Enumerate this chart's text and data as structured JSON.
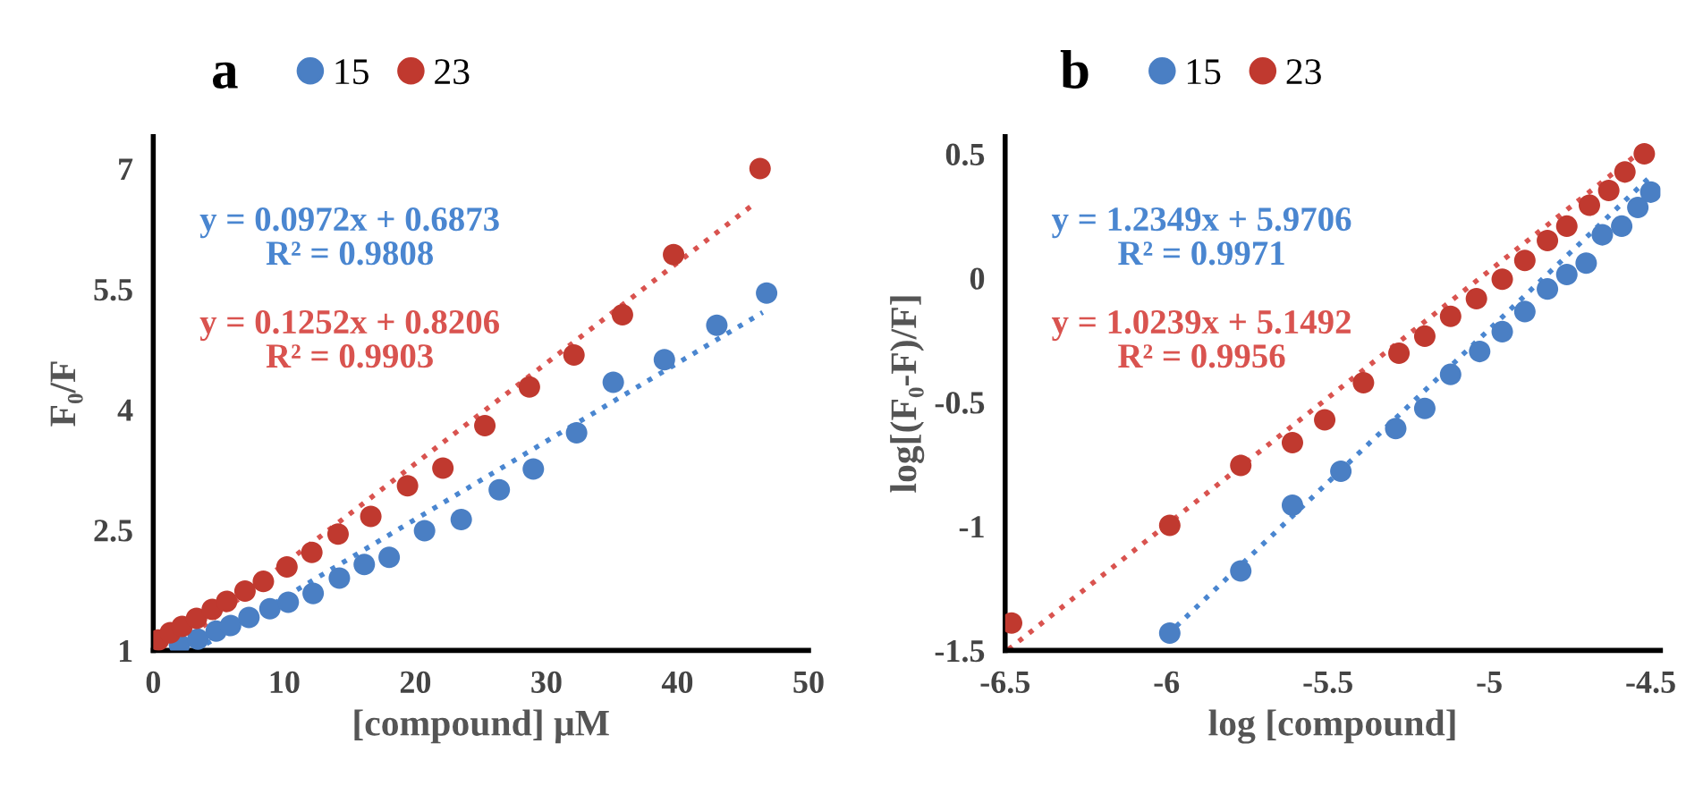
{
  "chart_data": [
    {
      "type": "scatter",
      "title": "a",
      "xlabel": "[compound] μM",
      "ylabel": "F₀/F",
      "xlim": [
        0,
        50
      ],
      "ylim": [
        1,
        7.4
      ],
      "xticks": [
        0,
        10,
        20,
        30,
        40,
        50
      ],
      "yticks": [
        1,
        2.5,
        4,
        5.5,
        7
      ],
      "grid": false,
      "legend": "top",
      "marker": "circle",
      "annotations": [
        "y = 0.0972x + 0.6873\nR² = 0.9808",
        "y = 0.1252x + 0.8206\nR² = 0.9903"
      ],
      "series": [
        {
          "name": "15",
          "color": "#4a7fc4",
          "x": [
            2.0,
            3.4,
            4.8,
            5.9,
            7.3,
            8.9,
            10.3,
            12.2,
            14.2,
            16.1,
            18.0,
            20.7,
            23.5,
            26.4,
            29.0,
            32.3,
            35.1,
            39.0,
            43.0,
            46.8
          ],
          "values": [
            1.07,
            1.14,
            1.24,
            1.31,
            1.41,
            1.52,
            1.6,
            1.71,
            1.9,
            2.07,
            2.16,
            2.49,
            2.63,
            3.0,
            3.26,
            3.71,
            4.34,
            4.62,
            5.05,
            5.45
          ]
        },
        {
          "name": "23",
          "color": "#c0392f",
          "x": [
            0.4,
            1.3,
            2.2,
            3.3,
            4.5,
            5.6,
            7.0,
            8.4,
            10.2,
            12.1,
            14.1,
            16.6,
            19.4,
            22.1,
            25.3,
            28.7,
            32.1,
            35.8,
            39.7,
            46.3
          ],
          "values": [
            1.13,
            1.22,
            1.3,
            1.4,
            1.51,
            1.61,
            1.74,
            1.86,
            2.04,
            2.22,
            2.45,
            2.67,
            3.05,
            3.27,
            3.8,
            4.28,
            4.68,
            5.18,
            5.93,
            7.0
          ]
        },
        {
          "type": "line",
          "color": "#4a86d0",
          "line_style": "dotted",
          "marker": "none",
          "x": [
            3.2,
            46.5
          ],
          "values": [
            1.0,
            5.21
          ]
        },
        {
          "type": "line",
          "color": "#d9534f",
          "line_style": "dotted",
          "marker": "none",
          "x": [
            1.4,
            46.0
          ],
          "values": [
            1.0,
            6.58
          ]
        }
      ]
    },
    {
      "type": "scatter",
      "title": "b",
      "xlabel": "log [compound]",
      "ylabel": "log[(F₀-F)/F]",
      "xlim": [
        -6.5,
        -4.47
      ],
      "ylim": [
        -1.5,
        0.57
      ],
      "xticks": [
        -6.5,
        -6,
        -5.5,
        -5,
        -4.5
      ],
      "yticks": [
        -1.5,
        -1,
        -0.5,
        0,
        0.5
      ],
      "grid": false,
      "legend": "top",
      "marker": "circle",
      "annotations": [
        "y = 1.2349x + 5.9706\nR² = 0.9971",
        "y = 1.0239x + 5.1492\nR² = 0.9956"
      ],
      "series": [
        {
          "name": "15",
          "color": "#4a7fc4",
          "x": [
            -5.99,
            -5.77,
            -5.61,
            -5.46,
            -5.29,
            -5.2,
            -5.12,
            -5.03,
            -4.96,
            -4.89,
            -4.82,
            -4.76,
            -4.7,
            -4.65,
            -4.59,
            -4.54,
            -4.5
          ],
          "values": [
            -1.43,
            -1.18,
            -0.915,
            -0.778,
            -0.606,
            -0.525,
            -0.388,
            -0.296,
            -0.216,
            -0.135,
            -0.044,
            0.014,
            0.06,
            0.174,
            0.209,
            0.284,
            0.346
          ]
        },
        {
          "name": "23",
          "color": "#c0392f",
          "x": [
            -6.48,
            -5.99,
            -5.77,
            -5.61,
            -5.51,
            -5.39,
            -5.28,
            -5.2,
            -5.12,
            -5.04,
            -4.96,
            -4.89,
            -4.82,
            -4.76,
            -4.69,
            -4.63,
            -4.58,
            -4.52
          ],
          "values": [
            -1.39,
            -0.996,
            -0.755,
            -0.663,
            -0.571,
            -0.422,
            -0.303,
            -0.234,
            -0.154,
            -0.083,
            -0.005,
            0.071,
            0.151,
            0.209,
            0.293,
            0.353,
            0.427,
            0.5
          ]
        },
        {
          "type": "line",
          "color": "#4a86d0",
          "line_style": "dotted",
          "marker": "none",
          "x": [
            -6.0,
            -4.5
          ],
          "values": [
            -1.44,
            0.41
          ]
        },
        {
          "type": "line",
          "color": "#d9534f",
          "line_style": "dotted",
          "marker": "none",
          "x": [
            -6.49,
            -4.55
          ],
          "values": [
            -1.496,
            0.49
          ]
        }
      ]
    }
  ]
}
